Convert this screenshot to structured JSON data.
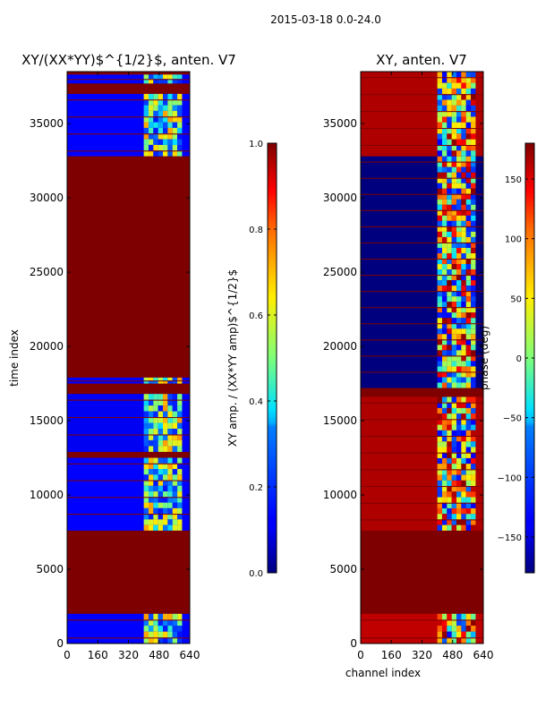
{
  "chart_data": {
    "suptitle": "2015-03-18 0.0-24.0",
    "type": "heatmap",
    "panels": [
      {
        "title": "XY/(XX*YY)$^{1/2}$, anten. V7",
        "xlabel": "",
        "ylabel": "time index",
        "xlim": [
          0,
          640
        ],
        "ylim": [
          0,
          38500
        ],
        "xticks": [
          0,
          160,
          320,
          480,
          640
        ],
        "yticks": [
          0,
          5000,
          10000,
          15000,
          20000,
          25000,
          30000,
          35000
        ],
        "colorbar": {
          "label": "XY amp. / (XX*YY amp)$^{1/2}$",
          "range": [
            0.0,
            1.0
          ],
          "ticks": [
            0.0,
            0.2,
            0.4,
            0.6,
            0.8,
            1.0
          ]
        },
        "background_value": 1.0,
        "bands": [
          {
            "t0": 0,
            "t1": 2000,
            "value": 0.12
          },
          {
            "t0": 7600,
            "t1": 12500,
            "value": 0.12
          },
          {
            "t0": 12900,
            "t1": 16800,
            "value": 0.1
          },
          {
            "t0": 17500,
            "t1": 17900,
            "value": 0.12
          },
          {
            "t0": 32800,
            "t1": 37000,
            "value": 0.12
          },
          {
            "t0": 37700,
            "t1": 38300,
            "value": 0.12
          }
        ],
        "active_channels": [
          400,
          600
        ]
      },
      {
        "title": "XY, anten. V7",
        "xlabel": "channel index",
        "ylabel": "",
        "xlim": [
          0,
          640
        ],
        "ylim": [
          0,
          38500
        ],
        "xticks": [
          0,
          160,
          320,
          480,
          640
        ],
        "yticks": [
          0,
          5000,
          10000,
          15000,
          20000,
          25000,
          30000,
          35000
        ],
        "colorbar": {
          "label": "phase (deg)",
          "range": [
            -180,
            180
          ],
          "ticks": [
            -150,
            -100,
            -50,
            0,
            50,
            100,
            150
          ]
        },
        "background_value": 180,
        "bands": [
          {
            "t0": 0,
            "t1": 2000,
            "value": 160
          },
          {
            "t0": 7600,
            "t1": 16600,
            "value": 165
          },
          {
            "t0": 17200,
            "t1": 32800,
            "value": -180
          },
          {
            "t0": 32800,
            "t1": 38500,
            "value": 165
          }
        ],
        "active_channels": [
          400,
          600
        ]
      }
    ]
  }
}
